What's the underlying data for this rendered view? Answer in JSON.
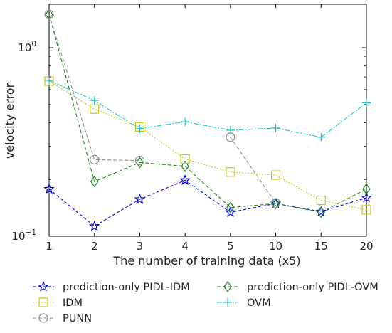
{
  "chart_data": {
    "type": "line",
    "xlabel": "The number of training data (x5)",
    "ylabel": "velocity error",
    "y_scale": "log",
    "ylim": [
      0.1,
      1.7
    ],
    "grid": false,
    "legend_placement": "bottom",
    "categories": [
      "1",
      "2",
      "3",
      "4",
      "5",
      "10",
      "15",
      "20"
    ],
    "y_ticks": [
      {
        "value": 0.1,
        "base": "10",
        "exp": "−1"
      },
      {
        "value": 1.0,
        "base": "10",
        "exp": "0"
      }
    ],
    "series": [
      {
        "name": "prediction-only PIDL-IDM",
        "color": "#0000ee",
        "dash": "4,3",
        "marker": "star",
        "values": [
          0.178,
          0.113,
          0.157,
          0.198,
          0.134,
          0.149,
          0.135,
          0.16
        ]
      },
      {
        "name": "prediction-only PIDL-OVM",
        "color": "#1a8a1a",
        "dash": "5,3",
        "marker": "diamond",
        "values": [
          1.5,
          0.195,
          0.246,
          0.235,
          0.142,
          0.149,
          0.134,
          0.178
        ]
      },
      {
        "name": "IDM",
        "color": "#c8c81a",
        "dash": "2,2",
        "marker": "square",
        "values": [
          0.665,
          0.473,
          0.38,
          0.257,
          0.219,
          0.211,
          0.155,
          0.138
        ]
      },
      {
        "name": "OVM",
        "color": "#1ec8c8",
        "dash": "7,2,2,2",
        "marker": "plus",
        "values": [
          0.67,
          0.525,
          0.372,
          0.405,
          0.365,
          0.375,
          0.335,
          0.51
        ]
      },
      {
        "name": "PUNN",
        "color": "#8c8c8c",
        "dash": "5,3",
        "marker": "circle",
        "values": [
          1.5,
          0.255,
          0.252,
          null,
          0.335,
          0.15,
          null,
          null
        ]
      }
    ],
    "legend_order": [
      0,
      1,
      2,
      3,
      4
    ]
  }
}
